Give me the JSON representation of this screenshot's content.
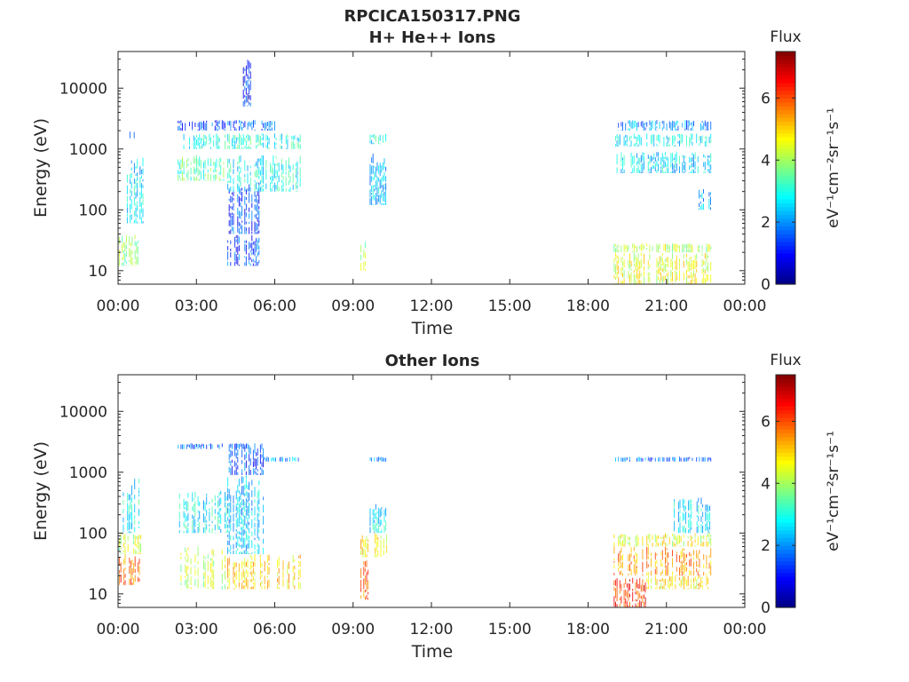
{
  "figure": {
    "title": "RPCICA150317.PNG"
  },
  "chart_data": [
    {
      "type": "heatmap",
      "title": "H+ He++ Ions",
      "xlabel": "Time",
      "ylabel": "Energy (eV)",
      "x_ticks": [
        "00:00",
        "03:00",
        "06:00",
        "09:00",
        "12:00",
        "15:00",
        "18:00",
        "21:00",
        "00:00"
      ],
      "y_ticks": [
        "10",
        "100",
        "1000",
        "10000"
      ],
      "y_scale": "log",
      "xlim_hours": [
        0,
        24
      ],
      "ylim": [
        6,
        40000
      ],
      "colorbar": {
        "title": "Flux",
        "units": "eV⁻¹cm⁻²sr⁻¹s⁻¹",
        "ticks": [
          "0",
          "2",
          "4",
          "6"
        ],
        "range": [
          0,
          7.5
        ],
        "colormap": "jet"
      },
      "regions": [
        {
          "t": [
            0.05,
            0.9
          ],
          "e": [
            12,
            40
          ],
          "flux": 3.8
        },
        {
          "t": [
            0.3,
            1.0
          ],
          "e": [
            60,
            800
          ],
          "flux": 2.6
        },
        {
          "t": [
            0.4,
            0.7
          ],
          "e": [
            1500,
            2000
          ],
          "flux": 2.0
        },
        {
          "t": [
            2.3,
            7.0
          ],
          "e": [
            1000,
            1800
          ],
          "flux": 3.0
        },
        {
          "t": [
            2.3,
            4.2
          ],
          "e": [
            300,
            800
          ],
          "flux": 3.4
        },
        {
          "t": [
            2.3,
            6.0
          ],
          "e": [
            2000,
            3000
          ],
          "flux": 1.6
        },
        {
          "t": [
            4.2,
            5.4
          ],
          "e": [
            12,
            40
          ],
          "flux": 1.5
        },
        {
          "t": [
            4.2,
            5.4
          ],
          "e": [
            40,
            300
          ],
          "flux": 1.4
        },
        {
          "t": [
            4.2,
            7.0
          ],
          "e": [
            200,
            800
          ],
          "flux": 2.8
        },
        {
          "t": [
            4.8,
            5.1
          ],
          "e": [
            5000,
            30000
          ],
          "flux": 1.1
        },
        {
          "t": [
            9.3,
            9.5
          ],
          "e": [
            10,
            30
          ],
          "flux": 4.0
        },
        {
          "t": [
            9.6,
            10.3
          ],
          "e": [
            120,
            900
          ],
          "flux": 2.4
        },
        {
          "t": [
            9.6,
            10.3
          ],
          "e": [
            1200,
            1800
          ],
          "flux": 2.8
        },
        {
          "t": [
            19.0,
            22.7
          ],
          "e": [
            6,
            20
          ],
          "flux": 4.5
        },
        {
          "t": [
            19.0,
            22.7
          ],
          "e": [
            20,
            28
          ],
          "flux": 4.2
        },
        {
          "t": [
            19.0,
            22.7
          ],
          "e": [
            400,
            900
          ],
          "flux": 2.6
        },
        {
          "t": [
            19.0,
            22.7
          ],
          "e": [
            1100,
            1800
          ],
          "flux": 2.8
        },
        {
          "t": [
            22.2,
            22.7
          ],
          "e": [
            100,
            220
          ],
          "flux": 2.2
        },
        {
          "t": [
            19.0,
            22.7
          ],
          "e": [
            2000,
            3000
          ],
          "flux": 2.0
        }
      ]
    },
    {
      "type": "heatmap",
      "title": "Other Ions",
      "xlabel": "Time",
      "ylabel": "Energy (eV)",
      "x_ticks": [
        "00:00",
        "03:00",
        "06:00",
        "09:00",
        "12:00",
        "15:00",
        "18:00",
        "21:00",
        "00:00"
      ],
      "y_ticks": [
        "10",
        "100",
        "1000",
        "10000"
      ],
      "y_scale": "log",
      "xlim_hours": [
        0,
        24
      ],
      "ylim": [
        6,
        40000
      ],
      "colorbar": {
        "title": "Flux",
        "units": "eV⁻¹cm⁻²sr⁻¹s⁻¹",
        "ticks": [
          "0",
          "2",
          "4",
          "6"
        ],
        "range": [
          0,
          7.5
        ],
        "colormap": "jet"
      },
      "regions": [
        {
          "t": [
            0.0,
            0.9
          ],
          "e": [
            14,
            45
          ],
          "flux": 5.8
        },
        {
          "t": [
            0.0,
            0.9
          ],
          "e": [
            45,
            100
          ],
          "flux": 4.2
        },
        {
          "t": [
            0.2,
            0.9
          ],
          "e": [
            100,
            800
          ],
          "flux": 2.8
        },
        {
          "t": [
            2.3,
            4.2
          ],
          "e": [
            12,
            60
          ],
          "flux": 4.2
        },
        {
          "t": [
            2.3,
            4.2
          ],
          "e": [
            100,
            500
          ],
          "flux": 2.8
        },
        {
          "t": [
            2.3,
            5.0
          ],
          "e": [
            2400,
            3000
          ],
          "flux": 1.6
        },
        {
          "t": [
            4.2,
            7.0
          ],
          "e": [
            12,
            45
          ],
          "flux": 5.0
        },
        {
          "t": [
            4.2,
            5.6
          ],
          "e": [
            45,
            900
          ],
          "flux": 2.4
        },
        {
          "t": [
            4.2,
            5.6
          ],
          "e": [
            900,
            3000
          ],
          "flux": 1.4
        },
        {
          "t": [
            5.6,
            7.0
          ],
          "e": [
            1500,
            1800
          ],
          "flux": 2.0
        },
        {
          "t": [
            9.3,
            9.6
          ],
          "e": [
            8,
            40
          ],
          "flux": 5.8
        },
        {
          "t": [
            9.3,
            10.3
          ],
          "e": [
            40,
            100
          ],
          "flux": 4.8
        },
        {
          "t": [
            9.6,
            10.3
          ],
          "e": [
            100,
            300
          ],
          "flux": 2.6
        },
        {
          "t": [
            9.6,
            10.3
          ],
          "e": [
            1500,
            1800
          ],
          "flux": 2.0
        },
        {
          "t": [
            19.0,
            20.2
          ],
          "e": [
            6,
            20
          ],
          "flux": 6.3
        },
        {
          "t": [
            19.0,
            22.7
          ],
          "e": [
            20,
            60
          ],
          "flux": 5.5
        },
        {
          "t": [
            19.0,
            22.7
          ],
          "e": [
            60,
            100
          ],
          "flux": 4.5
        },
        {
          "t": [
            20.2,
            22.7
          ],
          "e": [
            12,
            20
          ],
          "flux": 4.8
        },
        {
          "t": [
            21.3,
            22.7
          ],
          "e": [
            100,
            400
          ],
          "flux": 2.6
        },
        {
          "t": [
            19.0,
            22.7
          ],
          "e": [
            1500,
            1800
          ],
          "flux": 1.8
        }
      ]
    }
  ]
}
